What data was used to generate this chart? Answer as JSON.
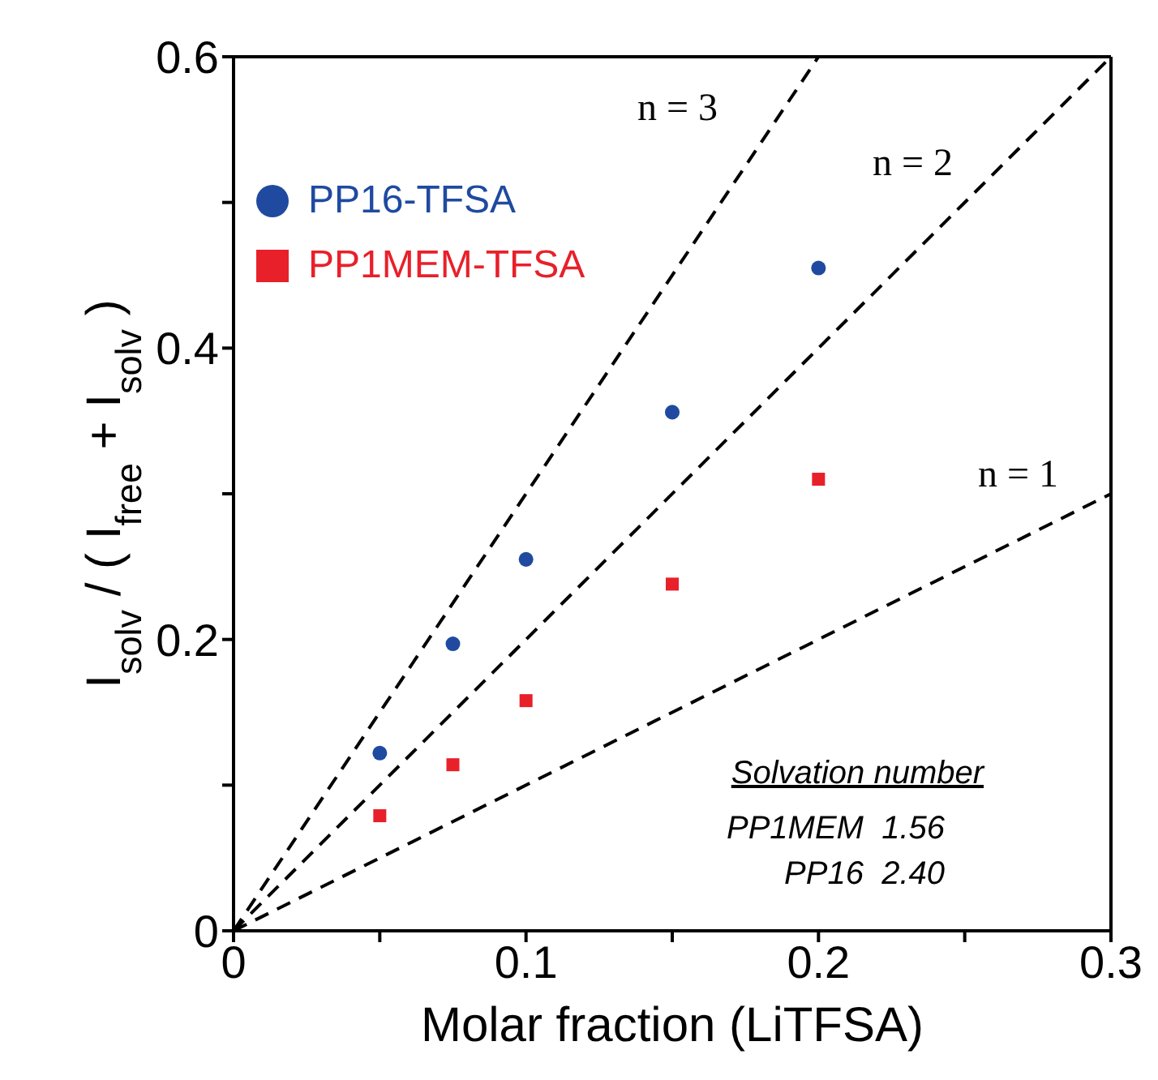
{
  "chart_data": {
    "type": "scatter",
    "xlabel": "Molar fraction (LiTFSA)",
    "ylabel": "I$_{solv}$ / ( I$_{free}$ + I$_{solv}$ )",
    "xlim": [
      0,
      0.3
    ],
    "xticks": [
      0,
      {
        "value": 0.05,
        "label": null
      },
      0.1,
      {
        "value": 0.15,
        "label": null
      },
      0.2,
      {
        "value": 0.25,
        "label": null
      },
      0.3
    ],
    "ylim": [
      0,
      0.6
    ],
    "yticks": [
      0,
      {
        "value": 0.1,
        "label": null
      },
      0.2,
      {
        "value": 0.3,
        "label": null
      },
      0.4,
      {
        "value": 0.5,
        "label": null
      },
      0.6
    ],
    "grid": false,
    "legend": "top left",
    "series": [
      {
        "name": "PP16-TFSA",
        "color": "#1f4aa0",
        "marker": "circle",
        "x": [
          0.05,
          0.075,
          0.1,
          0.15,
          0.2
        ],
        "values": [
          0.122,
          0.197,
          0.255,
          0.356,
          0.455
        ]
      },
      {
        "name": "PP1MEM-TFSA",
        "color": "#e8202a",
        "marker": "square",
        "x": [
          0.05,
          0.075,
          0.1,
          0.15,
          0.2
        ],
        "values": [
          0.079,
          0.114,
          0.158,
          0.238,
          0.31
        ]
      },
      {
        "type": "line",
        "color": "#000000",
        "line_style": "dashed",
        "marker": "none",
        "x": [
          0,
          0.2
        ],
        "values": [
          0,
          0.6
        ]
      },
      {
        "type": "line",
        "color": "#000000",
        "line_style": "dashed",
        "marker": "none",
        "x": [
          0,
          0.3
        ],
        "values": [
          0,
          0.6
        ]
      },
      {
        "type": "line",
        "color": "#000000",
        "line_style": "dashed",
        "marker": "none",
        "x": [
          0,
          0.3
        ],
        "values": [
          0,
          0.3
        ]
      }
    ],
    "annotations": [
      "n = 3",
      "n = 2",
      "n = 1",
      "Solvation number",
      "PP1MEM  1.56",
      "PP16  2.40"
    ]
  }
}
